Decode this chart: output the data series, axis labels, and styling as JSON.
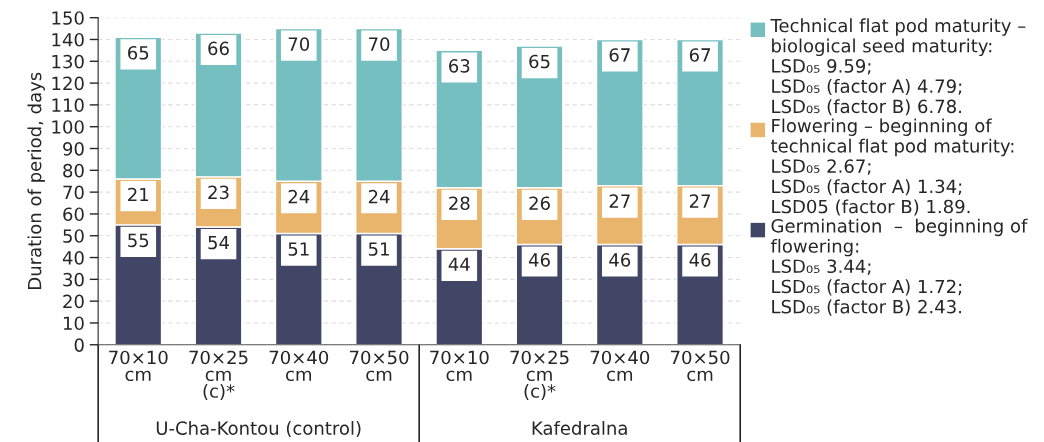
{
  "chart_data": {
    "type": "bar",
    "stacked": true,
    "ylabel": "Duration of period, days",
    "categories": [
      "70×10\ncm",
      "70×25\ncm\n(c)*",
      "70×40\ncm",
      "70×50\ncm",
      "70×10\ncm",
      "70×25\ncm\n(c)*",
      "70×40\ncm",
      "70×50\ncm"
    ],
    "series": [
      {
        "name": "Germination  –  beginning of\nflowering:\nLSD₀₅ 3.44;\nLSD₀₅ (factor A) 1.72;\nLSD₀₅ (factor B) 2.43.",
        "color": "#414566",
        "values": [
          55,
          54,
          51,
          51,
          44,
          46,
          46,
          46
        ]
      },
      {
        "name": "Flowering – beginning of\ntechnical flat pod maturity:\nLSD₀₅ 2.67;\nLSD₀₅ (factor A) 1.34;\nLSD05 (factor B) 1.89.",
        "color": "#e9b46b",
        "values": [
          21,
          23,
          24,
          24,
          28,
          26,
          27,
          27
        ]
      },
      {
        "name": "Technical flat pod maturity –\nbiological seed maturity:\nLSD₀₅ 9.59;\nLSD₀₅ (factor A) 4.79;\nLSD₀₅ (factor B) 6.78.",
        "color": "#76bfc0",
        "values": [
          65,
          66,
          70,
          70,
          63,
          65,
          67,
          67
        ]
      }
    ],
    "annotations": [
      "U-Cha-Kontou (control)",
      "Kafedralna"
    ],
    "ylim": [
      0,
      150
    ],
    "yticks": [
      0,
      10,
      20,
      30,
      40,
      50,
      60,
      70,
      80,
      90,
      100,
      110,
      120,
      130,
      140,
      150
    ],
    "grid": "y",
    "legend": "right",
    "data_labels": true
  }
}
